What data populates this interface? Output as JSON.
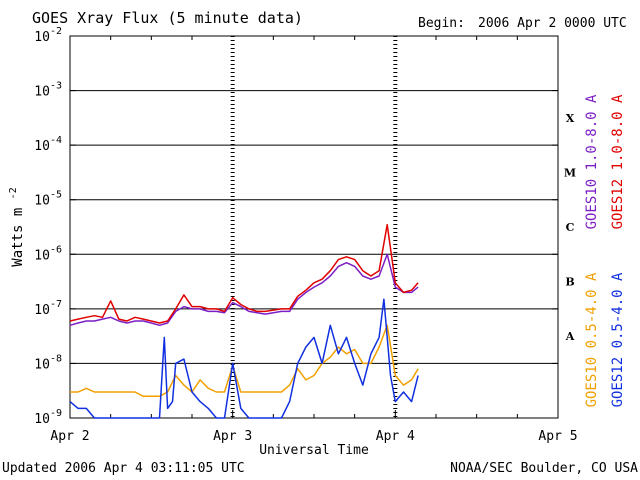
{
  "header": {
    "title": "GOES Xray Flux (5 minute data)",
    "begin_label": "Begin:",
    "begin_value": "2006 Apr 2 0000 UTC"
  },
  "footer": {
    "updated": "Updated 2006 Apr  4 03:11:05 UTC",
    "credit": "NOAA/SEC Boulder, CO USA"
  },
  "chart_data": {
    "type": "line",
    "title": "GOES Xray Flux (5 minute data)",
    "xlabel": "Universal Time",
    "ylabel": "Watts m",
    "ylabel_sup": "-2",
    "x_unit": "days since 2006 Apr 2 0000 UTC",
    "xlim": [
      0,
      3
    ],
    "x_ticks": [
      {
        "value": 0,
        "label": "Apr 2"
      },
      {
        "value": 1,
        "label": "Apr 3"
      },
      {
        "value": 2,
        "label": "Apr 4"
      },
      {
        "value": 3,
        "label": "Apr 5"
      }
    ],
    "y_scale": "log",
    "ylim": [
      1e-09,
      0.01
    ],
    "y_ticks": [
      {
        "exp": -9,
        "label": "10",
        "sup": "-9"
      },
      {
        "exp": -8,
        "label": "10",
        "sup": "-8"
      },
      {
        "exp": -7,
        "label": "10",
        "sup": "-7"
      },
      {
        "exp": -6,
        "label": "10",
        "sup": "-6"
      },
      {
        "exp": -5,
        "label": "10",
        "sup": "-5"
      },
      {
        "exp": -4,
        "label": "10",
        "sup": "-4"
      },
      {
        "exp": -3,
        "label": "10",
        "sup": "-3"
      },
      {
        "exp": -2,
        "label": "10",
        "sup": "-2"
      }
    ],
    "grid": "horizontal decade lines",
    "flare_classes": [
      {
        "label": "X",
        "exp": -3.5
      },
      {
        "label": "M",
        "exp": -4.5
      },
      {
        "label": "C",
        "exp": -5.5
      },
      {
        "label": "B",
        "exp": -6.5
      },
      {
        "label": "A",
        "exp": -7.5
      }
    ],
    "legend": [
      {
        "name": "GOES10 1.0-8.0 A",
        "color": "#7b1fc4"
      },
      {
        "name": "GOES12 1.0-8.0 A",
        "color": "#e00000"
      },
      {
        "name": "GOES10 0.5-4.0 A",
        "color": "#f0a000"
      },
      {
        "name": "GOES12 0.5-4.0 A",
        "color": "#1030e0"
      }
    ],
    "series": [
      {
        "name": "GOES10 1.0-8.0 A",
        "color": "#7b1fc4",
        "x": [
          0,
          0.05,
          0.1,
          0.15,
          0.2,
          0.25,
          0.3,
          0.35,
          0.4,
          0.45,
          0.5,
          0.55,
          0.6,
          0.65,
          0.7,
          0.75,
          0.8,
          0.85,
          0.9,
          0.95,
          1.0,
          1.05,
          1.1,
          1.15,
          1.2,
          1.25,
          1.3,
          1.35,
          1.4,
          1.45,
          1.5,
          1.55,
          1.6,
          1.65,
          1.7,
          1.75,
          1.8,
          1.85,
          1.9,
          1.95,
          2.0,
          2.05,
          2.1,
          2.14
        ],
        "y": [
          5e-08,
          5.5e-08,
          6e-08,
          6e-08,
          6.5e-08,
          7e-08,
          6e-08,
          5.5e-08,
          6e-08,
          6e-08,
          5.5e-08,
          5e-08,
          5.5e-08,
          9e-08,
          1.1e-07,
          1e-07,
          1e-07,
          9e-08,
          9e-08,
          8.5e-08,
          1.3e-07,
          1.1e-07,
          9e-08,
          8.5e-08,
          8e-08,
          8.5e-08,
          9e-08,
          9e-08,
          1.5e-07,
          2e-07,
          2.5e-07,
          3e-07,
          4e-07,
          6e-07,
          7e-07,
          6e-07,
          4e-07,
          3.5e-07,
          4e-07,
          1e-06,
          2.5e-07,
          2e-07,
          2e-07,
          2.5e-07
        ]
      },
      {
        "name": "GOES12 1.0-8.0 A",
        "color": "#e00000",
        "x": [
          0,
          0.05,
          0.1,
          0.15,
          0.2,
          0.25,
          0.3,
          0.35,
          0.4,
          0.45,
          0.5,
          0.55,
          0.6,
          0.65,
          0.7,
          0.75,
          0.8,
          0.85,
          0.9,
          0.95,
          1.0,
          1.05,
          1.1,
          1.15,
          1.2,
          1.25,
          1.3,
          1.35,
          1.4,
          1.45,
          1.5,
          1.55,
          1.6,
          1.65,
          1.7,
          1.75,
          1.8,
          1.85,
          1.9,
          1.95,
          2.0,
          2.05,
          2.1,
          2.14
        ],
        "y": [
          6e-08,
          6.5e-08,
          7e-08,
          7.5e-08,
          7e-08,
          1.4e-07,
          6.5e-08,
          6e-08,
          7e-08,
          6.5e-08,
          6e-08,
          5.5e-08,
          6e-08,
          1e-07,
          1.8e-07,
          1.1e-07,
          1.1e-07,
          1e-07,
          1e-07,
          9e-08,
          1.6e-07,
          1.2e-07,
          1e-07,
          9e-08,
          9e-08,
          9.5e-08,
          1e-07,
          1e-07,
          1.7e-07,
          2.2e-07,
          3e-07,
          3.5e-07,
          5e-07,
          8e-07,
          9e-07,
          8e-07,
          5e-07,
          4e-07,
          5e-07,
          3.5e-06,
          3e-07,
          2e-07,
          2.2e-07,
          3e-07
        ]
      },
      {
        "name": "GOES10 0.5-4.0 A",
        "color": "#f0a000",
        "x": [
          0,
          0.05,
          0.1,
          0.15,
          0.2,
          0.3,
          0.4,
          0.45,
          0.5,
          0.55,
          0.6,
          0.65,
          0.7,
          0.75,
          0.8,
          0.85,
          0.9,
          0.95,
          1.0,
          1.05,
          1.1,
          1.2,
          1.3,
          1.35,
          1.4,
          1.45,
          1.5,
          1.55,
          1.6,
          1.65,
          1.7,
          1.75,
          1.8,
          1.85,
          1.9,
          1.95,
          2.0,
          2.05,
          2.1,
          2.14
        ],
        "y": [
          3e-09,
          3e-09,
          3.5e-09,
          3e-09,
          3e-09,
          3e-09,
          3e-09,
          2.5e-09,
          2.5e-09,
          2.5e-09,
          3e-09,
          6e-09,
          4e-09,
          3e-09,
          5e-09,
          3.5e-09,
          3e-09,
          3e-09,
          9e-09,
          3e-09,
          3e-09,
          3e-09,
          3e-09,
          4e-09,
          8e-09,
          5e-09,
          6e-09,
          1e-08,
          1.3e-08,
          2e-08,
          1.5e-08,
          1.8e-08,
          1e-08,
          1e-08,
          2e-08,
          5e-08,
          6e-09,
          4e-09,
          5e-09,
          8e-09
        ]
      },
      {
        "name": "GOES12 0.5-4.0 A",
        "color": "#1030e0",
        "x": [
          0,
          0.05,
          0.1,
          0.15,
          0.2,
          0.3,
          0.4,
          0.5,
          0.55,
          0.58,
          0.6,
          0.63,
          0.65,
          0.7,
          0.75,
          0.8,
          0.85,
          0.9,
          0.95,
          1.0,
          1.05,
          1.1,
          1.2,
          1.3,
          1.35,
          1.4,
          1.45,
          1.5,
          1.55,
          1.6,
          1.65,
          1.7,
          1.75,
          1.8,
          1.85,
          1.9,
          1.93,
          1.95,
          1.97,
          2.0,
          2.05,
          2.1,
          2.14
        ],
        "y": [
          2e-09,
          1.5e-09,
          1.5e-09,
          1e-09,
          1e-09,
          1e-09,
          1e-09,
          1e-09,
          1e-09,
          3e-08,
          1.5e-09,
          2e-09,
          1e-08,
          1.2e-08,
          3e-09,
          2e-09,
          1.5e-09,
          1e-09,
          1e-09,
          1e-08,
          1.5e-09,
          1e-09,
          1e-09,
          1e-09,
          2e-09,
          1e-08,
          2e-08,
          3e-08,
          1e-08,
          5e-08,
          1.5e-08,
          3e-08,
          1e-08,
          4e-09,
          1.5e-08,
          3e-08,
          1.5e-07,
          3e-08,
          6e-09,
          2e-09,
          3e-09,
          2e-09,
          6e-09
        ]
      }
    ]
  }
}
